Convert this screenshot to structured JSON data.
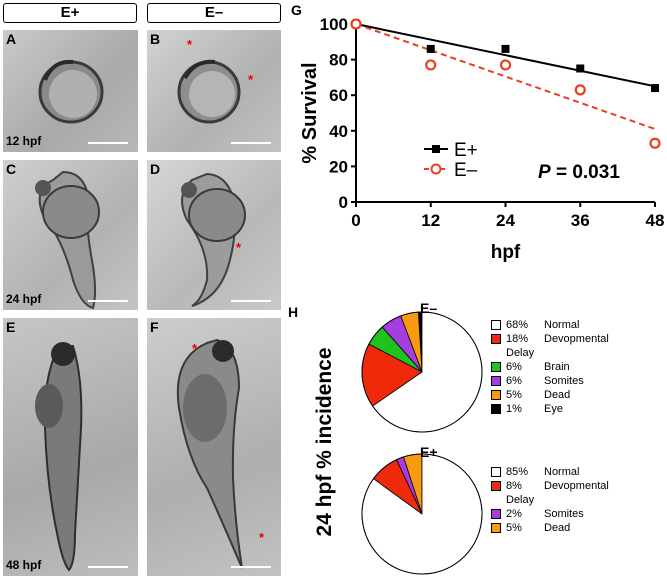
{
  "columns": {
    "left": "E+",
    "right": "E–"
  },
  "panels": [
    {
      "id": "A",
      "time": "12 hpf"
    },
    {
      "id": "B",
      "time": ""
    },
    {
      "id": "C",
      "time": ""
    },
    {
      "id": "D",
      "time": ""
    },
    {
      "id": "E",
      "time": ""
    },
    {
      "id": "F",
      "time": ""
    }
  ],
  "time_labels": {
    "row1": "12 hpf",
    "row2": "24 hpf",
    "row3": "48 hpf"
  },
  "star_glyph": "*",
  "chart_g_label": "G",
  "chart_h_label": "H",
  "colors": {
    "e_plus": "#000000",
    "e_minus": "#e8401c",
    "star": "#e00000"
  },
  "chart_data": [
    {
      "type": "scatter",
      "title": "",
      "xlabel": "hpf",
      "ylabel": "% Survival",
      "xlim": [
        0,
        48
      ],
      "ylim": [
        0,
        100
      ],
      "xticks": [
        0,
        12,
        24,
        36,
        48
      ],
      "yticks": [
        0,
        20,
        40,
        60,
        80,
        100
      ],
      "grid": false,
      "legend_position": "lower-left",
      "annotation": {
        "p_label": "P",
        "p_value": "= 0.031"
      },
      "series": [
        {
          "name": "E+",
          "marker": "filled-square",
          "line": "solid",
          "color": "#000000",
          "x": [
            0,
            12,
            24,
            36,
            48
          ],
          "y": [
            100,
            86,
            86,
            75,
            64
          ],
          "fit": [
            [
              0,
              100
            ],
            [
              48,
              65
            ]
          ]
        },
        {
          "name": "E–",
          "marker": "open-circle",
          "line": "dashed",
          "color": "#e8401c",
          "x": [
            0,
            12,
            24,
            36,
            48
          ],
          "y": [
            100,
            77,
            77,
            63,
            33
          ],
          "fit": [
            [
              0,
              100
            ],
            [
              48,
              41
            ]
          ]
        }
      ]
    },
    {
      "type": "pie",
      "title": "E–",
      "ylabel": "24 hpf % incidence",
      "slices": [
        {
          "pct": "68%",
          "value": 68,
          "label": "Normal",
          "label2": "",
          "color": "#ffffff"
        },
        {
          "pct": "18%",
          "value": 18,
          "label": "Devopmental",
          "label2": "Delay",
          "color": "#ee2a0b"
        },
        {
          "pct": "6%",
          "value": 6,
          "label": "Brain",
          "label2": "",
          "color": "#20c21c"
        },
        {
          "pct": "6%",
          "value": 6,
          "label": "Somites",
          "label2": "",
          "color": "#a63de0"
        },
        {
          "pct": "5%",
          "value": 5,
          "label": "Dead",
          "label2": "",
          "color": "#f79a10"
        },
        {
          "pct": "1%",
          "value": 1,
          "label": "Eye",
          "label2": "",
          "color": "#000000"
        }
      ]
    },
    {
      "type": "pie",
      "title": "E+",
      "slices": [
        {
          "pct": "85%",
          "value": 85,
          "label": "Normal",
          "label2": "",
          "color": "#ffffff"
        },
        {
          "pct": "8%",
          "value": 8,
          "label": "Devopmental",
          "label2": "Delay",
          "color": "#ee2a0b"
        },
        {
          "pct": "2%",
          "value": 2,
          "label": "Somites",
          "label2": "",
          "color": "#a63de0"
        },
        {
          "pct": "5%",
          "value": 5,
          "label": "Dead",
          "label2": "",
          "color": "#f79a10"
        }
      ]
    }
  ]
}
